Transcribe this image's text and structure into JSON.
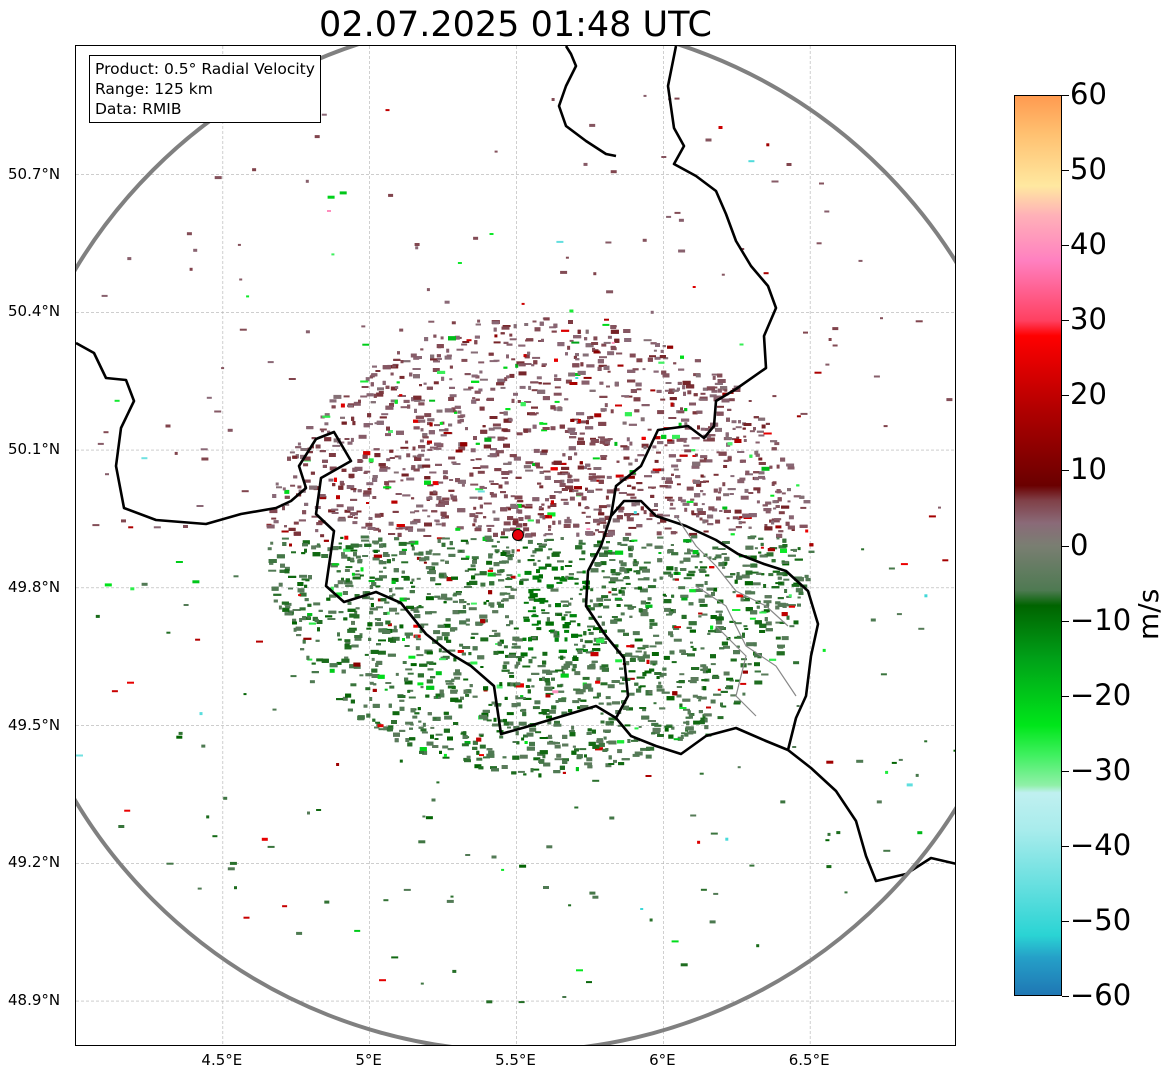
{
  "title": "02.07.2025 01:48 UTC",
  "info_box": {
    "lines": [
      "Product: 0.5° Radial Velocity",
      "Range: 125 km",
      "Data: RMIB"
    ]
  },
  "map": {
    "lon_range": [
      4.0,
      7.0
    ],
    "lat_range": [
      48.8,
      50.98
    ],
    "lat_ticks": [
      {
        "value": 48.9,
        "label": "48.9°N"
      },
      {
        "value": 49.2,
        "label": "49.2°N"
      },
      {
        "value": 49.5,
        "label": "49.5°N"
      },
      {
        "value": 49.8,
        "label": "49.8°N"
      },
      {
        "value": 50.1,
        "label": "50.1°N"
      },
      {
        "value": 50.4,
        "label": "50.4°N"
      },
      {
        "value": 50.7,
        "label": "50.7°N"
      }
    ],
    "lon_ticks": [
      {
        "value": 4.5,
        "label": "4.5°E"
      },
      {
        "value": 5.0,
        "label": "5°E"
      },
      {
        "value": 5.5,
        "label": "5.5°E"
      },
      {
        "value": 6.0,
        "label": "6°E"
      },
      {
        "value": 6.5,
        "label": "6.5°E"
      }
    ],
    "radar_site": {
      "lon": 5.505,
      "lat": 49.915,
      "color": "#e8000b"
    },
    "range_km": 125,
    "range_ring_color": "#808080",
    "gridlines": true,
    "border_color": "#000000"
  },
  "colorbar": {
    "unit": "m/s",
    "vmin": -60,
    "vmax": 60,
    "ticks": [
      {
        "value": 60,
        "label": "60"
      },
      {
        "value": 50,
        "label": "50"
      },
      {
        "value": 40,
        "label": "40"
      },
      {
        "value": 30,
        "label": "30"
      },
      {
        "value": 20,
        "label": "20"
      },
      {
        "value": 10,
        "label": "10"
      },
      {
        "value": 0,
        "label": "0"
      },
      {
        "value": -10,
        "label": "−10"
      },
      {
        "value": -20,
        "label": "−20"
      },
      {
        "value": -30,
        "label": "−30"
      },
      {
        "value": -40,
        "label": "−40"
      },
      {
        "value": -50,
        "label": "−50"
      },
      {
        "value": -60,
        "label": "−60"
      }
    ],
    "stops": [
      {
        "value": -60,
        "color": "#1f77b4"
      },
      {
        "value": -55,
        "color": "#25a0c8"
      },
      {
        "value": -52,
        "color": "#2ad4d4"
      },
      {
        "value": -45,
        "color": "#6ae0e0"
      },
      {
        "value": -38,
        "color": "#a8ecec"
      },
      {
        "value": -33,
        "color": "#c0f0f0"
      },
      {
        "value": -32,
        "color": "#90f0a8"
      },
      {
        "value": -28,
        "color": "#40f060"
      },
      {
        "value": -24,
        "color": "#00e61a"
      },
      {
        "value": -15,
        "color": "#00a018"
      },
      {
        "value": -8,
        "color": "#006400"
      },
      {
        "value": -6,
        "color": "#4e7a52"
      },
      {
        "value": 0,
        "color": "#7a7e72"
      },
      {
        "value": 3,
        "color": "#8a6a78"
      },
      {
        "value": 6,
        "color": "#804048"
      },
      {
        "value": 8,
        "color": "#6a0000"
      },
      {
        "value": 18,
        "color": "#b00000"
      },
      {
        "value": 28,
        "color": "#ff0000"
      },
      {
        "value": 30,
        "color": "#ff4060"
      },
      {
        "value": 38,
        "color": "#ff80c0"
      },
      {
        "value": 44,
        "color": "#ffb0b8"
      },
      {
        "value": 48,
        "color": "#ffe8a0"
      },
      {
        "value": 55,
        "color": "#ffc070"
      },
      {
        "value": 60,
        "color": "#ff9a50"
      }
    ]
  }
}
